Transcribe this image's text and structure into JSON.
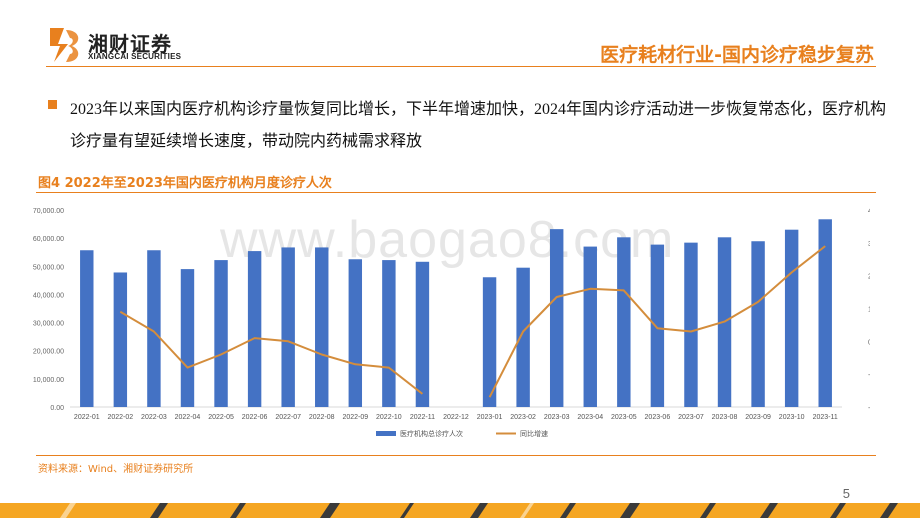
{
  "header": {
    "logo_cn": "湘财证券",
    "logo_en": "XIANGCAI SECURITIES",
    "title": "医疗耗材行业-国内诊疗稳步复苏"
  },
  "body": {
    "text": "2023年以来国内医疗机构诊疗量恢复同比增长，下半年增速加快，2024年国内诊疗活动进一步恢复常态化，医疗机构诊疗量有望延续增长速度，带动院内药械需求释放"
  },
  "figure": {
    "title": "图4 2022年至2023年国内医疗机构月度诊疗人次",
    "source": "资料来源：Wind、湘财证券研究所"
  },
  "watermark": "www.baogao8.com",
  "page_number": "5",
  "colors": {
    "accent": "#e8801e",
    "bar": "#4472c4",
    "line": "#d48d3c"
  },
  "chart_data": {
    "type": "bar",
    "categories": [
      "2022-01",
      "2022-02",
      "2022-03",
      "2022-04",
      "2022-05",
      "2022-06",
      "2022-07",
      "2022-08",
      "2022-09",
      "2022-10",
      "2022-11",
      "2022-12",
      "2023-01",
      "2023-02",
      "2023-03",
      "2023-04",
      "2023-05",
      "2023-06",
      "2023-07",
      "2023-08",
      "2023-09",
      "2023-10",
      "2023-11"
    ],
    "series": [
      {
        "name": "医疗机构总诊疗人次",
        "type": "bar",
        "axis": "left",
        "values": [
          55700,
          47800,
          55700,
          49000,
          52200,
          55400,
          56700,
          56700,
          52500,
          52200,
          51600,
          null,
          46100,
          49500,
          63200,
          57000,
          60300,
          57700,
          58400,
          60300,
          58900,
          63000,
          66700
        ]
      },
      {
        "name": "同比增速",
        "type": "line",
        "axis": "right",
        "values": [
          null,
          9,
          3,
          -8,
          -4,
          1,
          0,
          -4,
          -7,
          -8,
          -16,
          null,
          -17,
          3,
          13.5,
          16,
          15.5,
          4,
          3,
          6,
          12,
          21,
          29
        ]
      }
    ],
    "left_axis": {
      "min": 0,
      "max": 70000,
      "step": 10000,
      "ticks": [
        "0.00",
        "10,000.00",
        "20,000.00",
        "30,000.00",
        "40,000.00",
        "50,000.00",
        "60,000.00",
        "70,000.00"
      ]
    },
    "right_axis": {
      "min": -20,
      "max": 40,
      "step": 10,
      "ticks": [
        "-20%",
        "-10%",
        "0%",
        "10%",
        "20%",
        "30%",
        "40%"
      ]
    },
    "legend_position": "bottom",
    "title": "",
    "xlabel": "",
    "ylabel": ""
  }
}
